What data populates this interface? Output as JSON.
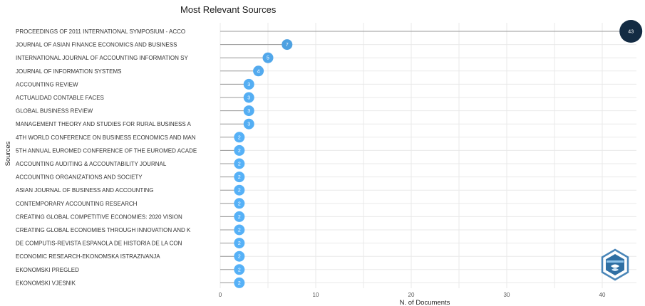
{
  "chart_data": {
    "type": "lollipop",
    "title": "Most Relevant Sources",
    "xlabel": "N. of Documents",
    "ylabel": "Sources",
    "xticks": [
      0,
      10,
      20,
      30,
      40
    ],
    "xlim": [
      0,
      44
    ],
    "grid": true,
    "colors": {
      "low": "#56B1F7",
      "high": "#132B43"
    },
    "categories": [
      "PROCEEDINGS OF 2011 INTERNATIONAL SYMPOSIUM - ACCO",
      "JOURNAL OF ASIAN FINANCE ECONOMICS AND BUSINESS",
      "INTERNATIONAL JOURNAL OF ACCOUNTING INFORMATION SY",
      "JOURNAL OF INFORMATION SYSTEMS",
      "ACCOUNTING REVIEW",
      "ACTUALIDAD CONTABLE FACES",
      "GLOBAL BUSINESS REVIEW",
      "MANAGEMENT THEORY AND STUDIES FOR RURAL BUSINESS A",
      "4TH WORLD CONFERENCE ON BUSINESS ECONOMICS AND MAN",
      "5TH ANNUAL EUROMED CONFERENCE OF THE EUROMED ACADE",
      "ACCOUNTING AUDITING & ACCOUNTABILITY JOURNAL",
      "ACCOUNTING ORGANIZATIONS AND SOCIETY",
      "ASIAN JOURNAL OF BUSINESS AND ACCOUNTING",
      "CONTEMPORARY ACCOUNTING RESEARCH",
      "CREATING GLOBAL COMPETITIVE ECONOMIES: 2020 VISION",
      "CREATING GLOBAL ECONOMIES THROUGH INNOVATION AND K",
      "DE COMPUTIS-REVISTA ESPANOLA DE HISTORIA DE LA CON",
      "ECONOMIC RESEARCH-EKONOMSKA ISTRAZIVANJA",
      "EKONOMSKI PREGLED",
      "EKONOMSKI VJESNIK"
    ],
    "values": [
      43,
      7,
      5,
      4,
      3,
      3,
      3,
      3,
      2,
      2,
      2,
      2,
      2,
      2,
      2,
      2,
      2,
      2,
      2,
      2
    ]
  }
}
